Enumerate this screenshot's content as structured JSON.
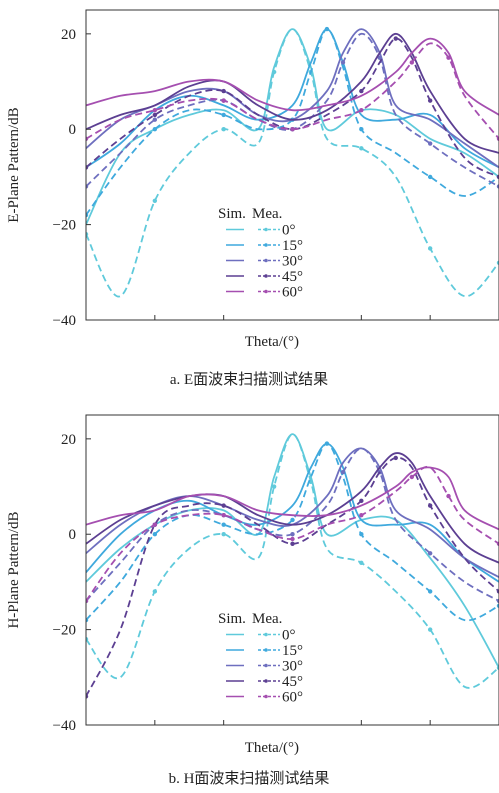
{
  "chart_data": [
    {
      "type": "line",
      "caption": "a. E面波束扫描测试结果",
      "xlabel": "Theta/(°)",
      "ylabel": "E-Plane Pattern/dB",
      "xlim": [
        -90,
        90
      ],
      "ylim": [
        -40,
        25
      ],
      "yticks": [
        20,
        0,
        -20,
        -40
      ],
      "legend": {
        "header": [
          "Sim.",
          "Mea."
        ],
        "labels": [
          "0°",
          "15°",
          "30°",
          "45°",
          "60°"
        ],
        "placement": "lower-center"
      },
      "series": [
        {
          "angle": 0,
          "color": "#5fcadb",
          "x": [
            -90,
            -75,
            -60,
            -45,
            -30,
            -15,
            -8,
            0,
            8,
            15,
            30,
            45,
            60,
            75,
            90
          ],
          "sim": [
            -20,
            -5,
            0,
            3,
            4,
            0,
            13,
            21,
            13,
            0,
            4,
            3,
            -2,
            -5,
            -10
          ],
          "mea": [
            -22,
            -35,
            -15,
            -5,
            0,
            -3,
            12,
            21,
            12,
            -2,
            -4,
            -10,
            -25,
            -35,
            -28
          ]
        },
        {
          "angle": 15,
          "color": "#3fa9dd",
          "x": [
            -90,
            -75,
            -60,
            -45,
            -30,
            -15,
            0,
            8,
            15,
            22,
            30,
            45,
            60,
            75,
            90
          ],
          "sim": [
            -8,
            -3,
            4,
            7,
            5,
            2,
            5,
            14,
            21,
            14,
            3,
            2,
            3,
            -4,
            -8
          ],
          "mea": [
            -18,
            -8,
            0,
            4,
            3,
            0,
            2,
            12,
            21,
            13,
            0,
            -5,
            -10,
            -14,
            -10
          ]
        },
        {
          "angle": 30,
          "color": "#6e6fbf",
          "x": [
            -90,
            -75,
            -60,
            -45,
            -30,
            -15,
            0,
            15,
            22,
            30,
            38,
            45,
            60,
            75,
            90
          ],
          "sim": [
            -4,
            2,
            5,
            8,
            8,
            3,
            2,
            8,
            16,
            21,
            16,
            5,
            2,
            -3,
            -8
          ],
          "mea": [
            -12,
            -5,
            2,
            5,
            6,
            2,
            0,
            6,
            14,
            20,
            15,
            3,
            -3,
            -8,
            -12
          ]
        },
        {
          "angle": 45,
          "color": "#5c3f92",
          "x": [
            -90,
            -75,
            -60,
            -45,
            -30,
            -15,
            0,
            15,
            30,
            38,
            45,
            52,
            60,
            75,
            90
          ],
          "sim": [
            0,
            3,
            5,
            9,
            10,
            5,
            2,
            4,
            10,
            16,
            20,
            16,
            8,
            -2,
            -5
          ],
          "mea": [
            -8,
            -2,
            3,
            7,
            8,
            3,
            0,
            3,
            8,
            14,
            19,
            15,
            6,
            -6,
            -10
          ]
        },
        {
          "angle": 60,
          "color": "#a54fb0",
          "x": [
            -90,
            -75,
            -60,
            -45,
            -30,
            -15,
            0,
            15,
            30,
            45,
            52,
            60,
            68,
            75,
            90
          ],
          "sim": [
            5,
            7,
            8,
            10,
            10,
            6,
            4,
            5,
            7,
            12,
            16,
            19,
            16,
            8,
            3
          ],
          "mea": [
            -2,
            2,
            4,
            6,
            6,
            2,
            0,
            2,
            4,
            10,
            14,
            18,
            15,
            7,
            -2
          ]
        }
      ]
    },
    {
      "type": "line",
      "caption": "b. H面波束扫描测试结果",
      "xlabel": "Theta/(°)",
      "ylabel": "H-Plane Pattern/dB",
      "xlim": [
        -90,
        90
      ],
      "ylim": [
        -40,
        25
      ],
      "yticks": [
        20,
        0,
        -20,
        -40
      ],
      "legend": {
        "header": [
          "Sim.",
          "Mea."
        ],
        "labels": [
          "0°",
          "15°",
          "30°",
          "45°",
          "60°"
        ],
        "placement": "lower-center"
      },
      "series": [
        {
          "angle": 0,
          "color": "#5fcadb",
          "x": [
            -90,
            -75,
            -60,
            -45,
            -30,
            -15,
            -8,
            0,
            8,
            15,
            30,
            45,
            60,
            75,
            90
          ],
          "sim": [
            -10,
            -3,
            2,
            5,
            5,
            0,
            12,
            21,
            12,
            0,
            3,
            3,
            -5,
            -15,
            -28
          ],
          "mea": [
            -22,
            -30,
            -12,
            -3,
            0,
            -5,
            10,
            21,
            11,
            -3,
            -6,
            -12,
            -20,
            -32,
            -28
          ]
        },
        {
          "angle": 15,
          "color": "#3fa9dd",
          "x": [
            -90,
            -75,
            -60,
            -45,
            -30,
            -15,
            0,
            8,
            15,
            22,
            30,
            45,
            60,
            75,
            90
          ],
          "sim": [
            -8,
            0,
            5,
            7,
            4,
            2,
            6,
            14,
            19,
            14,
            3,
            2,
            2,
            -5,
            -10
          ],
          "mea": [
            -18,
            -10,
            0,
            4,
            2,
            0,
            3,
            12,
            19,
            12,
            0,
            -6,
            -12,
            -18,
            -15
          ]
        },
        {
          "angle": 30,
          "color": "#6e6fbf",
          "x": [
            -90,
            -75,
            -60,
            -45,
            -30,
            -15,
            0,
            15,
            22,
            30,
            38,
            45,
            60,
            75,
            90
          ],
          "sim": [
            -4,
            2,
            6,
            8,
            6,
            3,
            2,
            8,
            15,
            18,
            14,
            5,
            1,
            -5,
            -9
          ],
          "mea": [
            -14,
            -6,
            2,
            5,
            4,
            1,
            0,
            6,
            13,
            18,
            13,
            3,
            -4,
            -10,
            -14
          ]
        },
        {
          "angle": 45,
          "color": "#5c3f92",
          "x": [
            -90,
            -75,
            -60,
            -45,
            -30,
            -15,
            0,
            15,
            30,
            38,
            45,
            52,
            60,
            75,
            90
          ],
          "sim": [
            -2,
            3,
            6,
            8,
            8,
            4,
            2,
            4,
            9,
            14,
            17,
            15,
            8,
            -2,
            -6
          ],
          "mea": [
            -34,
            -20,
            2,
            6,
            6,
            2,
            -2,
            2,
            7,
            13,
            16,
            14,
            6,
            -5,
            -12
          ]
        },
        {
          "angle": 60,
          "color": "#a54fb0",
          "x": [
            -90,
            -75,
            -60,
            -45,
            -30,
            -15,
            0,
            15,
            30,
            45,
            52,
            60,
            68,
            75,
            90
          ],
          "sim": [
            2,
            4,
            5,
            8,
            8,
            5,
            4,
            4,
            6,
            10,
            13,
            14,
            12,
            5,
            1
          ],
          "mea": [
            -14,
            -4,
            2,
            4,
            4,
            1,
            -1,
            2,
            4,
            9,
            12,
            14,
            8,
            3,
            -2
          ]
        }
      ]
    }
  ]
}
